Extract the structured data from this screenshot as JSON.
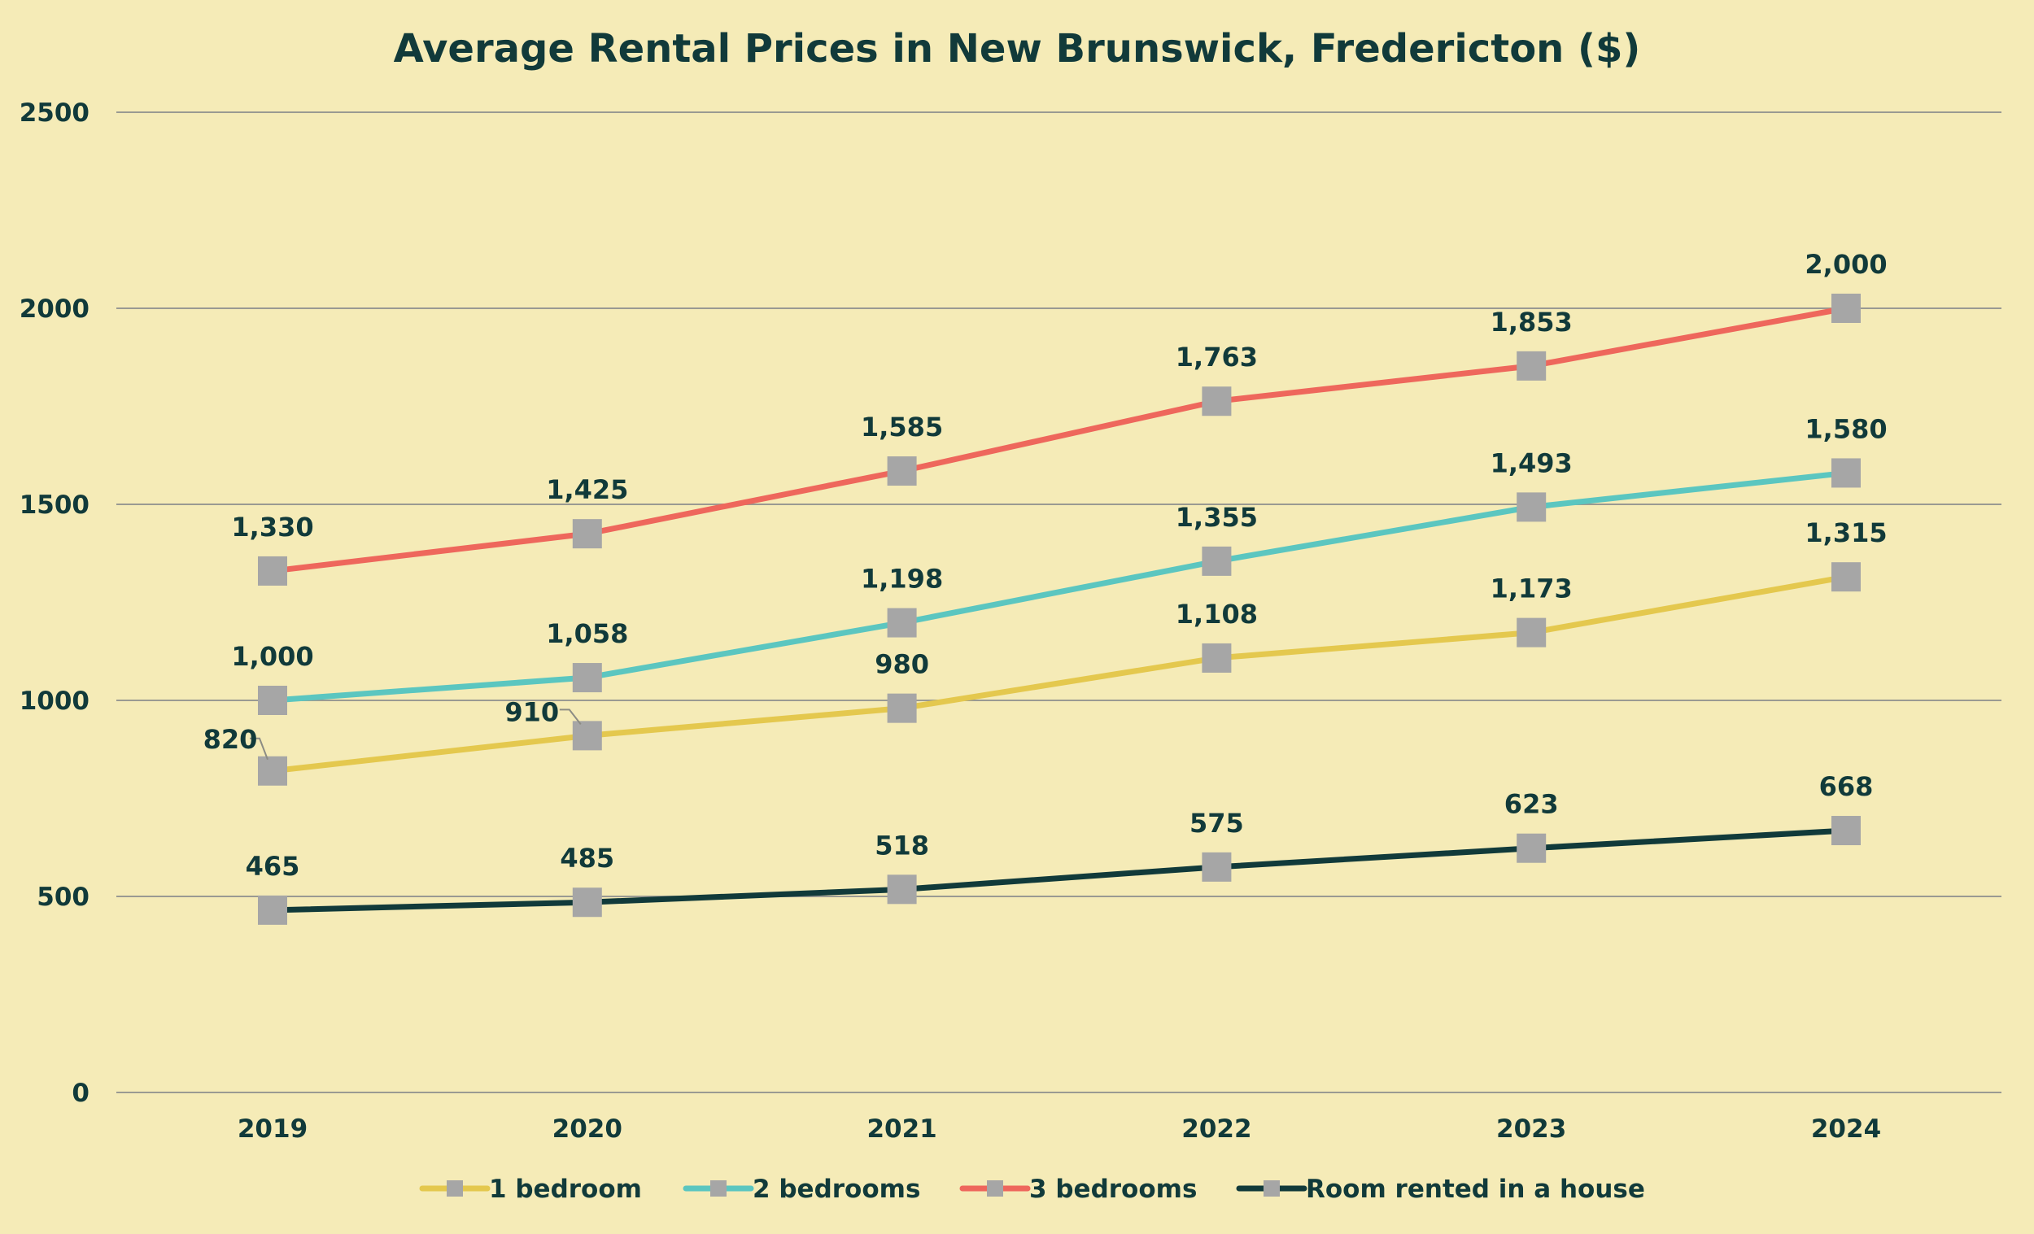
{
  "chart_data": {
    "type": "line",
    "title": "Average Rental Prices in New Brunswick, Fredericton ($)",
    "xlabel": "",
    "ylabel": "",
    "categories": [
      "2019",
      "2020",
      "2021",
      "2022",
      "2023",
      "2024"
    ],
    "ylim": [
      0,
      2500
    ],
    "yticks": [
      0,
      500,
      1000,
      1500,
      2000,
      2500
    ],
    "ytick_labels": [
      "0",
      "500",
      "1000",
      "1500",
      "2000",
      "2500"
    ],
    "grid": true,
    "legend_position": "bottom",
    "marker_color": "#A6A6A6",
    "series": [
      {
        "name": "1 bedroom",
        "color": "#E4C84E",
        "values": [
          820,
          910,
          980,
          1108,
          1173,
          1315
        ],
        "labels": [
          "820",
          "910",
          "980",
          "1,108",
          "1,173",
          "1,315"
        ]
      },
      {
        "name": "2 bedrooms",
        "color": "#5BC6C0",
        "values": [
          1000,
          1058,
          1198,
          1355,
          1493,
          1580
        ],
        "labels": [
          "1,000",
          "1,058",
          "1,198",
          "1,355",
          "1,493",
          "1,580"
        ]
      },
      {
        "name": "3 bedrooms",
        "color": "#EE675C",
        "values": [
          1330,
          1425,
          1585,
          1763,
          1853,
          2000
        ],
        "labels": [
          "1,330",
          "1,425",
          "1,585",
          "1,763",
          "1,853",
          "2,000"
        ]
      },
      {
        "name": "Room rented in a house",
        "color": "#113A3A",
        "values": [
          465,
          485,
          518,
          575,
          623,
          668
        ],
        "labels": [
          "465",
          "485",
          "518",
          "575",
          "623",
          "668"
        ]
      }
    ]
  }
}
